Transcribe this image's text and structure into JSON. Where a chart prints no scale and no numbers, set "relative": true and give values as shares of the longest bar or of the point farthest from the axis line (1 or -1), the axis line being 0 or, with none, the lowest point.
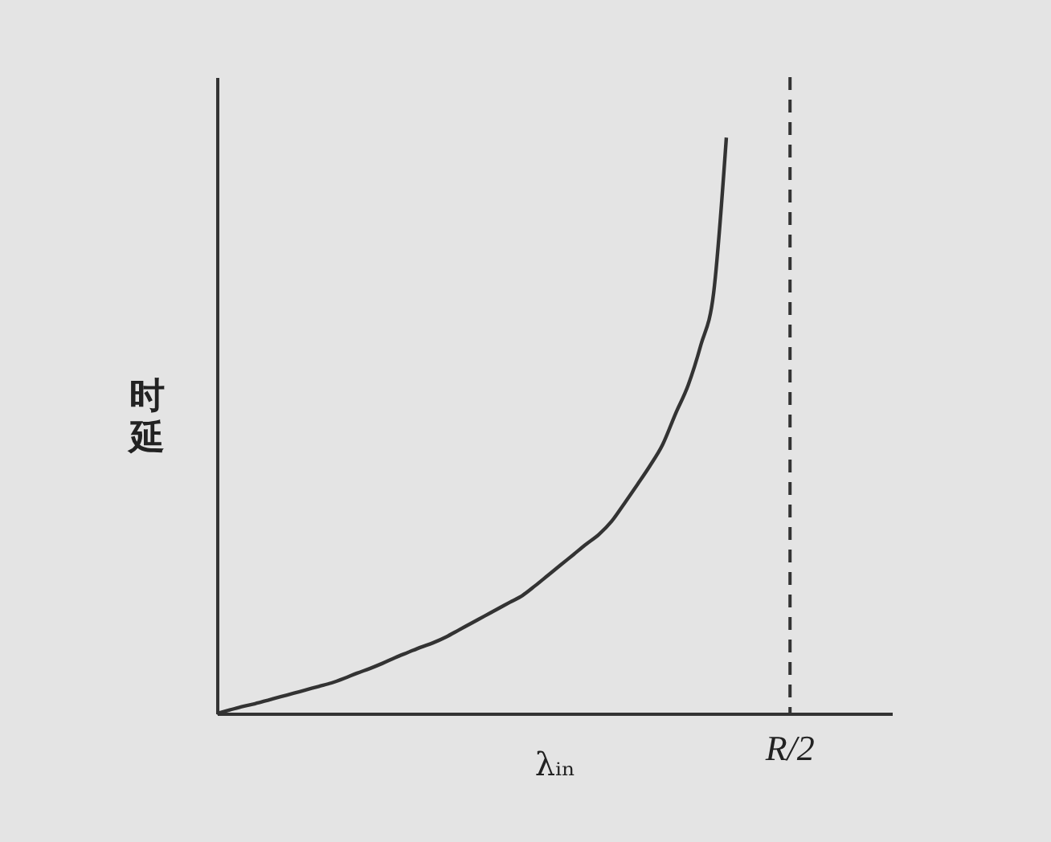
{
  "chart_data": {
    "type": "line",
    "xlabel": "λᵢₙ",
    "ylabel": "时延",
    "relative": true,
    "categories": [
      null,
      null,
      null,
      null,
      null,
      null,
      null,
      null,
      null,
      null,
      null,
      null,
      null,
      null,
      null,
      null,
      null,
      null,
      null,
      null,
      null,
      null,
      null,
      null,
      null,
      null,
      null,
      null,
      null,
      null,
      null,
      null,
      null,
      null,
      null,
      null,
      null,
      null,
      null,
      null,
      null,
      null,
      null,
      null,
      null,
      null,
      null,
      null,
      null,
      null,
      null,
      null,
      null,
      null
    ],
    "series": [
      {
        "color": "#333333",
        "values": [
          0,
          0.006,
          0.012,
          0.017,
          0.023,
          0.029,
          0.035,
          0.041,
          0.047,
          0.053,
          0.061,
          0.07,
          0.078,
          0.087,
          0.097,
          0.106,
          0.115,
          0.123,
          0.133,
          0.145,
          0.157,
          0.169,
          0.181,
          0.193,
          0.205,
          0.222,
          0.24,
          0.258,
          0.276,
          0.294,
          0.311,
          0.334,
          0.365,
          0.397,
          0.43,
          0.467,
          0.52,
          0.57,
          0.64,
          0.73,
          1,
          null,
          null,
          null,
          null,
          null,
          null,
          null,
          null,
          null,
          null,
          null,
          null,
          null
        ]
      }
    ],
    "annotations": [
      "R/2"
    ],
    "grid": false
  }
}
